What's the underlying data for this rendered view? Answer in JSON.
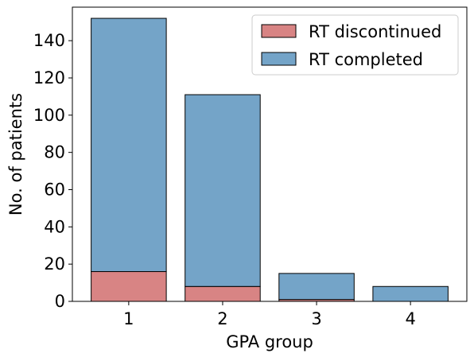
{
  "chart_data": {
    "type": "bar",
    "stacked": true,
    "categories": [
      "1",
      "2",
      "3",
      "4"
    ],
    "series": [
      {
        "name": "RT discontinued",
        "values": [
          16,
          8,
          1,
          0
        ],
        "color": "#d88484"
      },
      {
        "name": "RT completed",
        "values": [
          136,
          103,
          14,
          8
        ],
        "color": "#74a4c8"
      }
    ],
    "xlabel": "GPA group",
    "ylabel": "No. of patients",
    "ylim": [
      0,
      158
    ],
    "yticks": [
      0,
      20,
      40,
      60,
      80,
      100,
      120,
      140
    ],
    "grid": false,
    "legend": "top-right"
  }
}
